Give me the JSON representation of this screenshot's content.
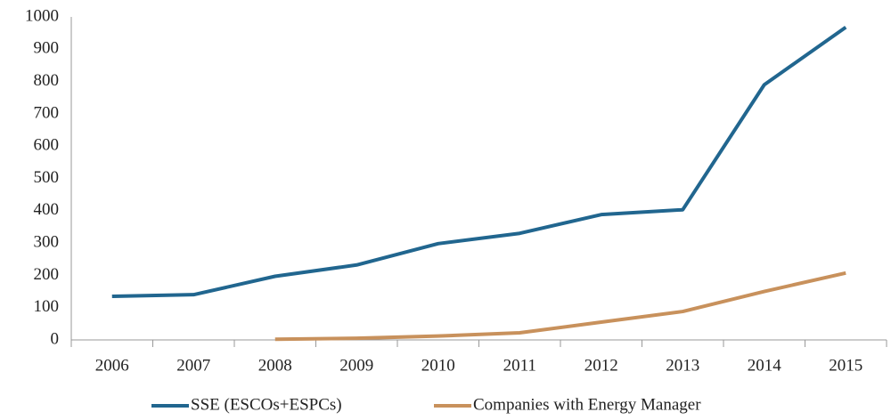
{
  "chart_data": {
    "type": "line",
    "categories": [
      "2006",
      "2007",
      "2008",
      "2009",
      "2010",
      "2011",
      "2012",
      "2013",
      "2014",
      "2015"
    ],
    "series": [
      {
        "name": "SSE (ESCOs+ESPCs)",
        "color": "#21668f",
        "values": [
          135,
          140,
          197,
          232,
          298,
          330,
          388,
          403,
          790,
          968
        ]
      },
      {
        "name": "Companies with Energy Manager",
        "color": "#c8915c",
        "values": [
          null,
          null,
          2,
          5,
          12,
          22,
          55,
          88,
          150,
          207
        ]
      }
    ],
    "ylim": [
      0,
      1000
    ],
    "yticks": [
      0,
      100,
      200,
      300,
      400,
      500,
      600,
      700,
      800,
      900,
      1000
    ],
    "grid": false,
    "legend": "bottom"
  }
}
